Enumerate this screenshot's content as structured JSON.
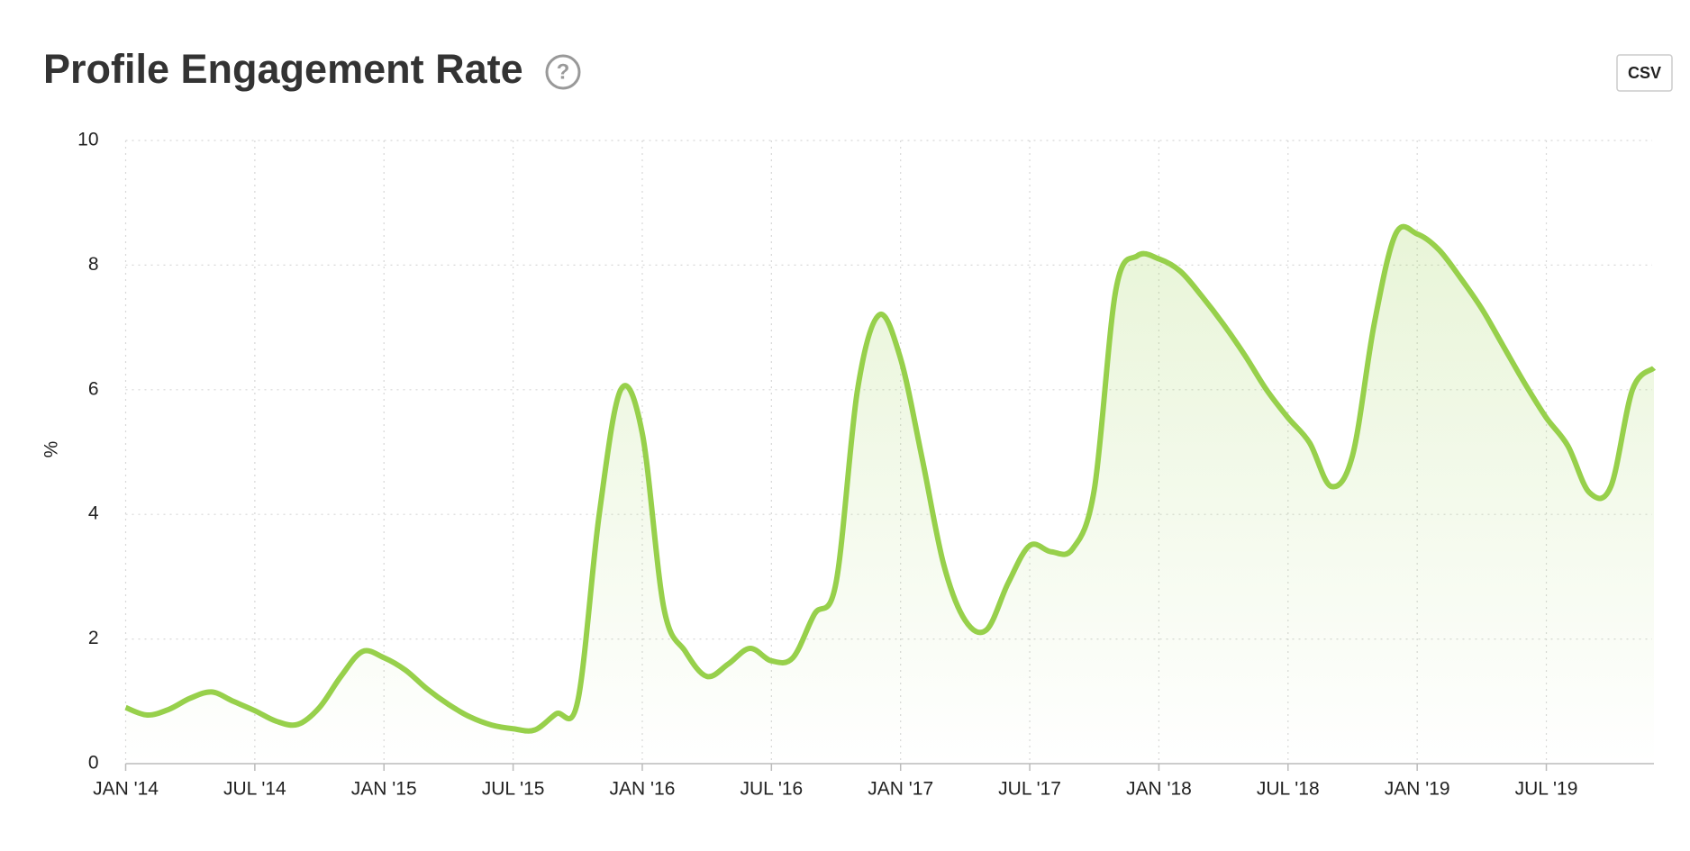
{
  "chart_data": {
    "type": "line",
    "title": "Profile Engagement Rate",
    "button": "CSV",
    "help": "?",
    "ylabel": "%",
    "x": [
      "2014-01",
      "2014-02",
      "2014-03",
      "2014-04",
      "2014-05",
      "2014-06",
      "2014-07",
      "2014-08",
      "2014-09",
      "2014-10",
      "2014-11",
      "2014-12",
      "2015-01",
      "2015-02",
      "2015-03",
      "2015-04",
      "2015-05",
      "2015-06",
      "2015-07",
      "2015-08",
      "2015-09",
      "2015-10",
      "2015-11",
      "2015-12",
      "2016-01",
      "2016-02",
      "2016-03",
      "2016-04",
      "2016-05",
      "2016-06",
      "2016-07",
      "2016-08",
      "2016-09",
      "2016-10",
      "2016-11",
      "2016-12",
      "2017-01",
      "2017-02",
      "2017-03",
      "2017-04",
      "2017-05",
      "2017-06",
      "2017-07",
      "2017-08",
      "2017-09",
      "2017-10",
      "2017-11",
      "2017-12",
      "2018-01",
      "2018-02",
      "2018-03",
      "2018-04",
      "2018-05",
      "2018-06",
      "2018-07",
      "2018-08",
      "2018-09",
      "2018-10",
      "2018-11",
      "2018-12",
      "2019-01",
      "2019-02",
      "2019-03",
      "2019-04",
      "2019-05",
      "2019-06",
      "2019-07",
      "2019-08",
      "2019-09",
      "2019-10",
      "2019-11",
      "2019-12"
    ],
    "series": [
      {
        "name": "Profile Engagement Rate",
        "color": "#97d04b",
        "values": [
          0.9,
          0.78,
          0.87,
          1.05,
          1.15,
          1.0,
          0.85,
          0.68,
          0.63,
          0.9,
          1.4,
          1.8,
          1.7,
          1.5,
          1.2,
          0.95,
          0.75,
          0.62,
          0.56,
          0.54,
          0.8,
          1.0,
          4.0,
          6.0,
          5.3,
          2.5,
          1.8,
          1.4,
          1.6,
          1.85,
          1.65,
          1.7,
          2.4,
          2.9,
          6.0,
          7.2,
          6.5,
          4.9,
          3.2,
          2.3,
          2.15,
          2.9,
          3.5,
          3.4,
          3.45,
          4.4,
          7.6,
          8.15,
          8.1,
          7.9,
          7.5,
          7.05,
          6.55,
          6.0,
          5.55,
          5.15,
          4.45,
          4.95,
          7.05,
          8.5,
          8.5,
          8.25,
          7.8,
          7.3,
          6.7,
          6.1,
          5.55,
          5.1,
          4.35,
          4.45,
          6.0,
          6.35
        ]
      }
    ],
    "xlim": [
      "2014-01",
      "2019-12"
    ],
    "xticks": [
      {
        "value": "2014-01",
        "label": "JAN '14"
      },
      {
        "value": "2014-07",
        "label": "JUL '14"
      },
      {
        "value": "2015-01",
        "label": "JAN '15"
      },
      {
        "value": "2015-07",
        "label": "JUL '15"
      },
      {
        "value": "2016-01",
        "label": "JAN '16"
      },
      {
        "value": "2016-07",
        "label": "JUL '16"
      },
      {
        "value": "2017-01",
        "label": "JAN '17"
      },
      {
        "value": "2017-07",
        "label": "JUL '17"
      },
      {
        "value": "2018-01",
        "label": "JAN '18"
      },
      {
        "value": "2018-07",
        "label": "JUL '18"
      },
      {
        "value": "2019-01",
        "label": "JAN '19"
      },
      {
        "value": "2019-07",
        "label": "JUL '19"
      }
    ],
    "ylim": [
      0,
      10
    ],
    "yticks": [
      0,
      2,
      4,
      6,
      8,
      10
    ],
    "grid": true
  }
}
